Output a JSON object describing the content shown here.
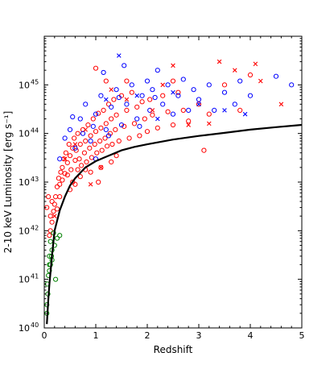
{
  "chart_data": {
    "type": "scatter",
    "title": "",
    "xlabel": "Redshift",
    "ylabel": "2-10 keV Luminosity [erg s⁻¹]",
    "xlim": [
      0,
      5
    ],
    "ylim": [
      1e+40,
      1e+46
    ],
    "yscale": "log",
    "grid": false,
    "x_ticks": [
      0,
      1,
      2,
      3,
      4,
      5
    ],
    "x_tick_labels": [
      "0",
      "1",
      "2",
      "3",
      "4",
      "5"
    ],
    "y_ticks": [
      1e+40,
      1e+41,
      1e+42,
      1e+43,
      1e+44,
      1e+45
    ],
    "y_tick_labels": [
      {
        "base": "10",
        "exp": "40"
      },
      {
        "base": "10",
        "exp": "41"
      },
      {
        "base": "10",
        "exp": "42"
      },
      {
        "base": "10",
        "exp": "43"
      },
      {
        "base": "10",
        "exp": "44"
      },
      {
        "base": "10",
        "exp": "45"
      }
    ],
    "curve": {
      "color": "#000000",
      "x": [
        0.05,
        0.08,
        0.1,
        0.15,
        0.2,
        0.3,
        0.4,
        0.5,
        0.6,
        0.8,
        1.0,
        1.25,
        1.5,
        1.75,
        2.0,
        2.5,
        3.0,
        3.5,
        4.0,
        4.5,
        5.0
      ],
      "y": [
        1.2e+40,
        4e+40,
        8e+40,
        3e+41,
        1e+42,
        2.6e+42,
        5e+42,
        8.5e+42,
        1.2e+43,
        2e+43,
        2.7e+43,
        3.5e+43,
        4.5e+43,
        5.3e+43,
        6e+43,
        7.5e+43,
        8.9e+43,
        1.03e+44,
        1.2e+44,
        1.35e+44,
        1.5e+44
      ]
    },
    "series": [
      {
        "marker": "circle",
        "color": "#ff0000",
        "points": [
          [
            0.12,
            1e+42
          ],
          [
            0.15,
            1.5e+42
          ],
          [
            0.18,
            2.5e+42
          ],
          [
            0.2,
            3.5e+42
          ],
          [
            0.22,
            5e+42
          ],
          [
            0.25,
            8e+42
          ],
          [
            0.28,
            1.2e+43
          ],
          [
            0.3,
            9e+42
          ],
          [
            0.32,
            1.6e+43
          ],
          [
            0.35,
            2e+43
          ],
          [
            0.38,
            3e+43
          ],
          [
            0.4,
            1.5e+43
          ],
          [
            0.42,
            4e+43
          ],
          [
            0.45,
            2.5e+43
          ],
          [
            0.48,
            6e+43
          ],
          [
            0.5,
            3.5e+43
          ],
          [
            0.52,
            1.8e+43
          ],
          [
            0.55,
            5e+43
          ],
          [
            0.58,
            8e+43
          ],
          [
            0.6,
            2.8e+43
          ],
          [
            0.62,
            4.5e+43
          ],
          [
            0.65,
            1e+44
          ],
          [
            0.68,
            3e+43
          ],
          [
            0.7,
            6e+43
          ],
          [
            0.72,
            2.2e+43
          ],
          [
            0.75,
            1.2e+44
          ],
          [
            0.78,
            4e+43
          ],
          [
            0.8,
            7e+43
          ],
          [
            0.82,
            2.6e+43
          ],
          [
            0.85,
            1.5e+44
          ],
          [
            0.88,
            5e+43
          ],
          [
            0.9,
            9e+43
          ],
          [
            0.92,
            3.2e+43
          ],
          [
            0.95,
            2e+44
          ],
          [
            0.98,
            6e+43
          ],
          [
            1.0,
            1.1e+44
          ],
          [
            1.02,
            4e+43
          ],
          [
            1.05,
            2.6e+44
          ],
          [
            1.08,
            7e+43
          ],
          [
            1.1,
            1.3e+44
          ],
          [
            1.12,
            4.5e+43
          ],
          [
            1.15,
            3e+44
          ],
          [
            1.18,
            8e+43
          ],
          [
            1.2,
            1.6e+44
          ],
          [
            1.22,
            5.5e+43
          ],
          [
            1.25,
            4e+44
          ],
          [
            1.28,
            1e+44
          ],
          [
            1.3,
            2e+44
          ],
          [
            1.32,
            6e+43
          ],
          [
            1.35,
            5e+44
          ],
          [
            1.38,
            1.2e+44
          ],
          [
            1.4,
            2.4e+44
          ],
          [
            1.45,
            7e+43
          ],
          [
            1.5,
            6e+44
          ],
          [
            1.55,
            1.4e+44
          ],
          [
            1.6,
            3e+44
          ],
          [
            1.65,
            8e+43
          ],
          [
            1.7,
            7e+44
          ],
          [
            1.75,
            1.6e+44
          ],
          [
            1.8,
            3.5e+44
          ],
          [
            1.85,
            9e+43
          ],
          [
            1.9,
            4.5e+44
          ],
          [
            1.95,
            2e+44
          ],
          [
            2.0,
            1.1e+44
          ],
          [
            2.05,
            5e+44
          ],
          [
            2.1,
            2.4e+44
          ],
          [
            2.2,
            1.3e+44
          ],
          [
            2.3,
            6e+44
          ],
          [
            2.4,
            2.8e+44
          ],
          [
            2.5,
            1.5e+44
          ],
          [
            2.6,
            7e+44
          ],
          [
            2.7,
            3e+44
          ],
          [
            2.8,
            1.8e+44
          ],
          [
            3.0,
            4e+44
          ],
          [
            3.1,
            4.5e+43
          ],
          [
            3.2,
            2.5e+44
          ],
          [
            3.5,
            1e+45
          ],
          [
            3.8,
            3e+44
          ],
          [
            4.0,
            1.6e+45
          ],
          [
            0.1,
            8e+41
          ],
          [
            0.15,
            4e+42
          ],
          [
            0.3,
            5e+42
          ],
          [
            0.5,
            7e+42
          ],
          [
            0.6,
            9e+42
          ],
          [
            0.7,
            1.3e+43
          ],
          [
            0.9,
            1.6e+43
          ],
          [
            1.1,
            2e+43
          ],
          [
            1.3,
            2.6e+43
          ],
          [
            0.35,
            1.1e+43
          ],
          [
            0.45,
            1.4e+43
          ],
          [
            0.55,
            1e+43
          ],
          [
            1.0,
            2.2e+45
          ],
          [
            1.2,
            1.2e+45
          ],
          [
            1.6,
            1.2e+45
          ],
          [
            2.5,
            1.2e+45
          ],
          [
            1.05,
            1e+43
          ],
          [
            0.8,
            1.8e+43
          ],
          [
            0.65,
            1.8e+43
          ],
          [
            1.4,
            3.5e+43
          ],
          [
            0.25,
            2.8e+42
          ],
          [
            0.08,
            5e+42
          ],
          [
            0.05,
            3e+42
          ],
          [
            0.12,
            2e+42
          ]
        ]
      },
      {
        "marker": "circle",
        "color": "#0000ff",
        "points": [
          [
            0.3,
            3e+43
          ],
          [
            0.4,
            8e+43
          ],
          [
            0.5,
            1.2e+44
          ],
          [
            0.6,
            5e+43
          ],
          [
            0.7,
            2e+44
          ],
          [
            0.8,
            4e+44
          ],
          [
            0.9,
            7e+43
          ],
          [
            1.0,
            2.5e+44
          ],
          [
            1.1,
            6e+44
          ],
          [
            1.15,
            1.8e+45
          ],
          [
            1.2,
            1.2e+44
          ],
          [
            1.3,
            3.5e+44
          ],
          [
            1.4,
            8e+44
          ],
          [
            1.5,
            1.5e+44
          ],
          [
            1.55,
            2.5e+45
          ],
          [
            1.6,
            4e+44
          ],
          [
            1.7,
            1e+45
          ],
          [
            1.8,
            2e+44
          ],
          [
            1.9,
            6e+44
          ],
          [
            2.0,
            1.2e+45
          ],
          [
            2.05,
            3e+44
          ],
          [
            2.1,
            8e+44
          ],
          [
            2.2,
            2e+45
          ],
          [
            2.3,
            4e+44
          ],
          [
            2.4,
            1e+45
          ],
          [
            2.5,
            2.5e+44
          ],
          [
            2.6,
            6e+44
          ],
          [
            2.7,
            1.3e+45
          ],
          [
            2.8,
            3e+44
          ],
          [
            2.9,
            8e+44
          ],
          [
            3.0,
            5e+44
          ],
          [
            3.2,
            1e+45
          ],
          [
            3.3,
            3e+44
          ],
          [
            3.5,
            7e+44
          ],
          [
            3.7,
            4e+44
          ],
          [
            3.8,
            1.2e+45
          ],
          [
            4.0,
            6e+44
          ],
          [
            4.5,
            1.5e+45
          ],
          [
            4.8,
            1e+45
          ],
          [
            1.0,
            3e+43
          ],
          [
            1.25,
            9e+43
          ],
          [
            0.75,
            1e+44
          ],
          [
            1.85,
            1.4e+44
          ],
          [
            0.55,
            2.2e+44
          ],
          [
            0.95,
            1.4e+44
          ],
          [
            1.45,
            5.5e+44
          ],
          [
            2.15,
            5.5e+44
          ]
        ]
      },
      {
        "marker": "circle",
        "color": "#008000",
        "points": [
          [
            0.05,
            2e+40
          ],
          [
            0.05,
            3e+40
          ],
          [
            0.06,
            8e+40
          ],
          [
            0.08,
            1.2e+41
          ],
          [
            0.1,
            1.5e+41
          ],
          [
            0.12,
            2e+41
          ],
          [
            0.15,
            2.5e+41
          ],
          [
            0.1,
            3e+41
          ],
          [
            0.15,
            4e+41
          ],
          [
            0.2,
            5e+41
          ],
          [
            0.12,
            6e+41
          ],
          [
            0.25,
            7e+41
          ],
          [
            0.18,
            9e+41
          ],
          [
            0.3,
            8e+41
          ],
          [
            0.22,
            1e+41
          ],
          [
            0.07,
            5e+40
          ],
          [
            0.1,
            2e+41
          ],
          [
            0.14,
            3e+41
          ]
        ]
      },
      {
        "marker": "x",
        "color": "#ff0000",
        "points": [
          [
            0.2,
            2e+42
          ],
          [
            0.4,
            3e+43
          ],
          [
            0.6,
            6e+43
          ],
          [
            0.8,
            1.2e+44
          ],
          [
            0.9,
            9e+42
          ],
          [
            1.1,
            2e+43
          ],
          [
            1.3,
            8e+44
          ],
          [
            1.6,
            5e+44
          ],
          [
            2.1,
            3e+44
          ],
          [
            2.3,
            1e+45
          ],
          [
            2.5,
            2.5e+45
          ],
          [
            2.8,
            1.5e+44
          ],
          [
            3.4,
            3e+45
          ],
          [
            3.7,
            2e+45
          ],
          [
            4.1,
            2.7e+45
          ],
          [
            4.2,
            1.2e+45
          ],
          [
            4.6,
            4e+44
          ],
          [
            3.2,
            1.6e+44
          ]
        ]
      },
      {
        "marker": "x",
        "color": "#0000ff",
        "points": [
          [
            1.45,
            4e+45
          ],
          [
            1.8,
            6e+44
          ],
          [
            2.5,
            7e+44
          ],
          [
            3.0,
            4e+44
          ],
          [
            3.5,
            3e+44
          ],
          [
            3.9,
            2.5e+44
          ],
          [
            2.2,
            2e+44
          ],
          [
            1.2,
            5e+44
          ]
        ]
      }
    ]
  }
}
